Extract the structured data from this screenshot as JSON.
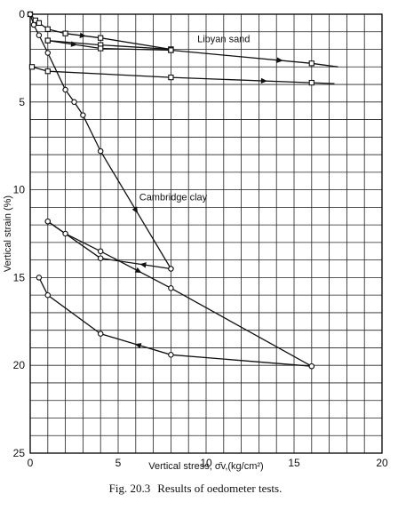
{
  "caption": {
    "number": "Fig. 20.3",
    "text": "Results of oedometer tests."
  },
  "chart_data": {
    "type": "line",
    "title": "",
    "xlabel": "Vertical stress, σ̄v,(kg/cm²)",
    "ylabel": "Vertical strain (%)",
    "xlim": [
      0,
      20
    ],
    "ylim": [
      0,
      25
    ],
    "y_inverted": true,
    "grid": true,
    "x_ticks": [
      0,
      5,
      10,
      15,
      20
    ],
    "y_ticks": [
      0,
      5,
      10,
      15,
      20,
      25
    ],
    "annotations": [
      {
        "text": "Libyan sand",
        "x": 9.5,
        "y": 1.6
      },
      {
        "text": "Cambridge clay",
        "x": 6.2,
        "y": 10.6
      }
    ],
    "series": [
      {
        "marker": "square",
        "segments": [
          {
            "points": [
              [
                0,
                0
              ],
              [
                0.3,
                0.35
              ],
              [
                0.5,
                0.5
              ],
              [
                1,
                0.85
              ],
              [
                2,
                1.1
              ],
              [
                4,
                1.35
              ],
              [
                8,
                2.0
              ]
            ],
            "arrows": [
              [
                3.0,
                1.25
              ]
            ]
          },
          {
            "points": [
              [
                8,
                2.0
              ],
              [
                4,
                1.75
              ],
              [
                1,
                1.5
              ]
            ],
            "arrows": []
          },
          {
            "points": [
              [
                1,
                1.5
              ],
              [
                4,
                1.95
              ],
              [
                8,
                2.05
              ]
            ],
            "arrows": [
              [
                2.5,
                1.72
              ]
            ]
          },
          {
            "points": [
              [
                8,
                2.05
              ],
              [
                16,
                2.8
              ],
              [
                17.5,
                3.0
              ]
            ],
            "arrows": [
              [
                14.2,
                2.64
              ]
            ]
          },
          {
            "points": [
              [
                0.1,
                3.0
              ],
              [
                1,
                3.25
              ],
              [
                8,
                3.6
              ],
              [
                16,
                3.9
              ],
              [
                17.3,
                3.95
              ]
            ],
            "arrows": [
              [
                13.3,
                3.8
              ]
            ]
          }
        ]
      },
      {
        "marker": "circle",
        "segments": [
          {
            "points": [
              [
                0,
                0
              ],
              [
                0.2,
                0.6
              ],
              [
                0.5,
                1.2
              ],
              [
                1,
                2.2
              ],
              [
                2,
                4.3
              ],
              [
                2.5,
                5.0
              ],
              [
                3,
                5.75
              ],
              [
                4,
                7.8
              ],
              [
                8,
                14.5
              ]
            ],
            "arrows": [
              [
                6.0,
                11.2
              ]
            ]
          },
          {
            "points": [
              [
                8,
                14.5
              ],
              [
                4,
                13.9
              ],
              [
                1,
                11.8
              ]
            ],
            "arrows": [
              [
                6.4,
                14.3
              ]
            ]
          },
          {
            "points": [
              [
                1,
                11.8
              ],
              [
                2,
                12.5
              ],
              [
                4,
                13.5
              ],
              [
                8,
                15.6
              ],
              [
                16,
                20.05
              ]
            ],
            "arrows": [
              [
                6.2,
                14.6
              ]
            ]
          },
          {
            "points": [
              [
                16,
                20.05
              ],
              [
                8,
                19.4
              ],
              [
                4,
                18.2
              ],
              [
                1,
                16.0
              ],
              [
                0.5,
                15.0
              ]
            ],
            "arrows": [
              [
                6.1,
                18.9
              ]
            ]
          }
        ]
      }
    ]
  }
}
